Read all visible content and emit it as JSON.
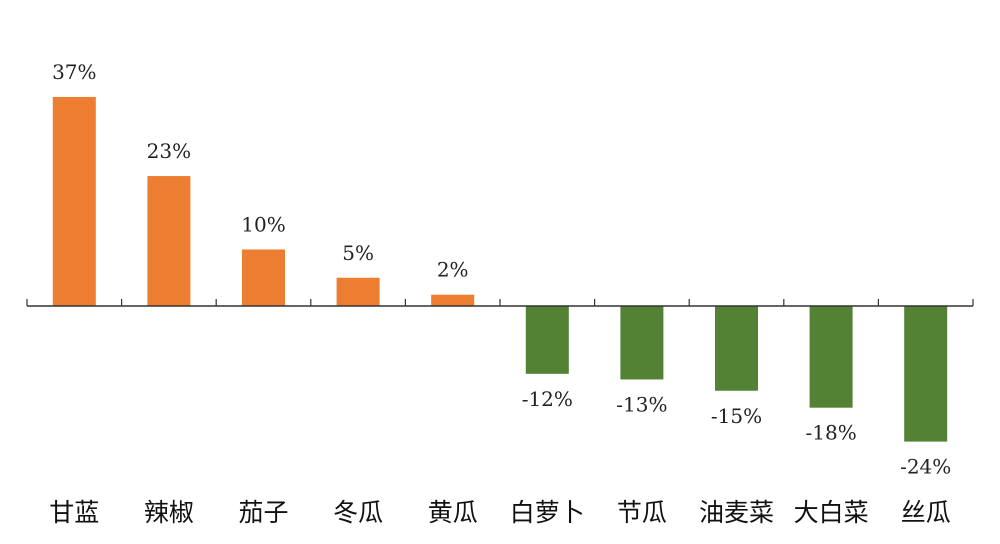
{
  "chart_data": {
    "type": "bar",
    "categories": [
      "甘蓝",
      "辣椒",
      "茄子",
      "冬瓜",
      "黄瓜",
      "白萝卜",
      "节瓜",
      "油麦菜",
      "大白菜",
      "丝瓜"
    ],
    "values": [
      37,
      23,
      10,
      5,
      2,
      -12,
      -13,
      -15,
      -18,
      -24
    ],
    "value_labels": [
      "37%",
      "23%",
      "10%",
      "5%",
      "2%",
      "-12%",
      "-13%",
      "-15%",
      "-18%",
      "-24%"
    ],
    "title": "",
    "xlabel": "",
    "ylabel": "",
    "ylim": [
      -24,
      37
    ],
    "grid": false,
    "legend": "none",
    "colors": {
      "positive": "#ED7D31",
      "negative": "#548235",
      "axis": "#333333"
    }
  }
}
